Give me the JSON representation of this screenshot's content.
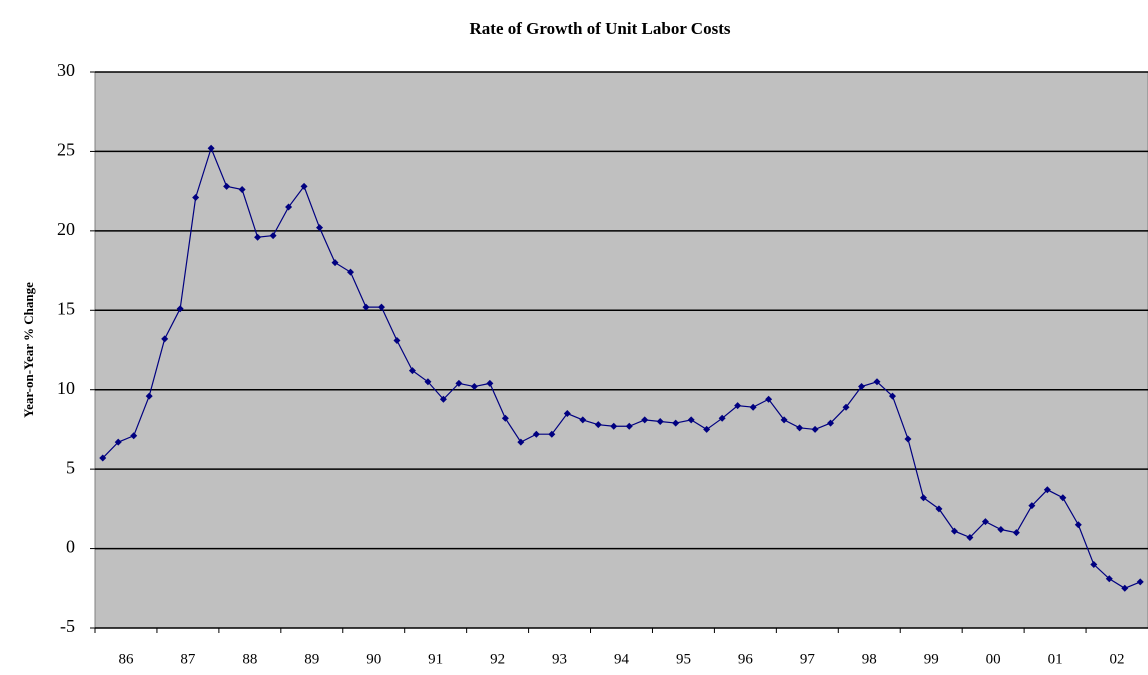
{
  "chart_data": {
    "type": "line",
    "title": "Rate of Growth of Unit Labor Costs",
    "y_label": "Year-on-Year % Change",
    "categories": [
      null,
      "86",
      null,
      null,
      null,
      "87",
      null,
      null,
      null,
      "88",
      null,
      null,
      null,
      "89",
      null,
      null,
      null,
      "90",
      null,
      null,
      null,
      "91",
      null,
      null,
      null,
      "92",
      null,
      null,
      null,
      "93",
      null,
      null,
      null,
      "94",
      null,
      null,
      null,
      "95",
      null,
      null,
      null,
      "96",
      null,
      null,
      null,
      "97",
      null,
      null,
      null,
      "98",
      null,
      null,
      null,
      "99",
      null,
      null,
      null,
      "00",
      null,
      null,
      null,
      "01",
      null,
      null,
      null,
      "02",
      null,
      null
    ],
    "values": [
      5.7,
      6.7,
      7.1,
      9.6,
      13.2,
      15.1,
      22.1,
      25.2,
      22.8,
      22.6,
      19.6,
      19.7,
      21.5,
      22.8,
      20.2,
      18.0,
      17.4,
      15.2,
      15.2,
      13.1,
      11.2,
      10.5,
      9.4,
      10.4,
      10.2,
      10.4,
      8.2,
      6.7,
      7.2,
      7.2,
      8.5,
      8.1,
      7.8,
      7.7,
      7.7,
      8.1,
      8.0,
      7.9,
      8.1,
      7.5,
      8.2,
      9.0,
      8.9,
      9.4,
      8.1,
      7.6,
      7.5,
      7.9,
      8.9,
      10.2,
      10.5,
      9.6,
      6.9,
      3.2,
      2.5,
      1.1,
      0.7,
      1.7,
      1.2,
      1.0,
      2.7,
      3.7,
      3.2,
      1.5,
      -1.0,
      -1.9,
      -2.5,
      -2.1
    ],
    "color": "#000080",
    "ylim": [
      -5,
      30
    ],
    "yticks": [
      -5,
      0,
      5,
      10,
      15,
      20,
      25,
      30
    ],
    "grid": true,
    "plot_background": "#c0c0c0"
  }
}
